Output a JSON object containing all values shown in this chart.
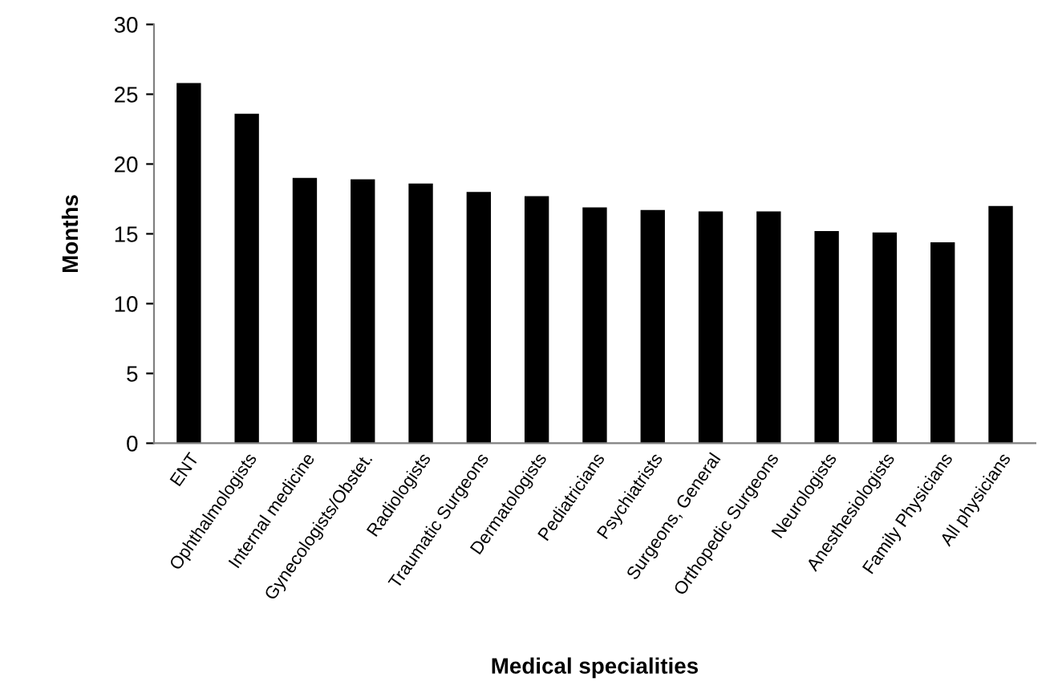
{
  "chart_data": {
    "type": "bar",
    "xlabel": "Medical specialities",
    "ylabel": "Months",
    "categories": [
      "ENT",
      "Ophthalmologists",
      "Internal medicine",
      "Gynecologists/Obstet.",
      "Radiologists",
      "Traumatic Surgeons",
      "Dermatologists",
      "Pediatricians",
      "Psychiatrists",
      "Surgeons, General",
      "Orthopedic Surgeons",
      "Neurologists",
      "Anesthesiologists",
      "Family Physicians",
      "All physicians"
    ],
    "values": [
      25.8,
      23.6,
      19.0,
      18.9,
      18.6,
      18.0,
      17.7,
      16.9,
      16.7,
      16.6,
      16.6,
      15.2,
      15.1,
      14.4,
      17.0
    ],
    "color": "#000000",
    "ylim": [
      0,
      30
    ],
    "yticks": [
      0,
      5,
      10,
      15,
      20,
      25,
      30
    ],
    "grid": false,
    "legend": false
  }
}
